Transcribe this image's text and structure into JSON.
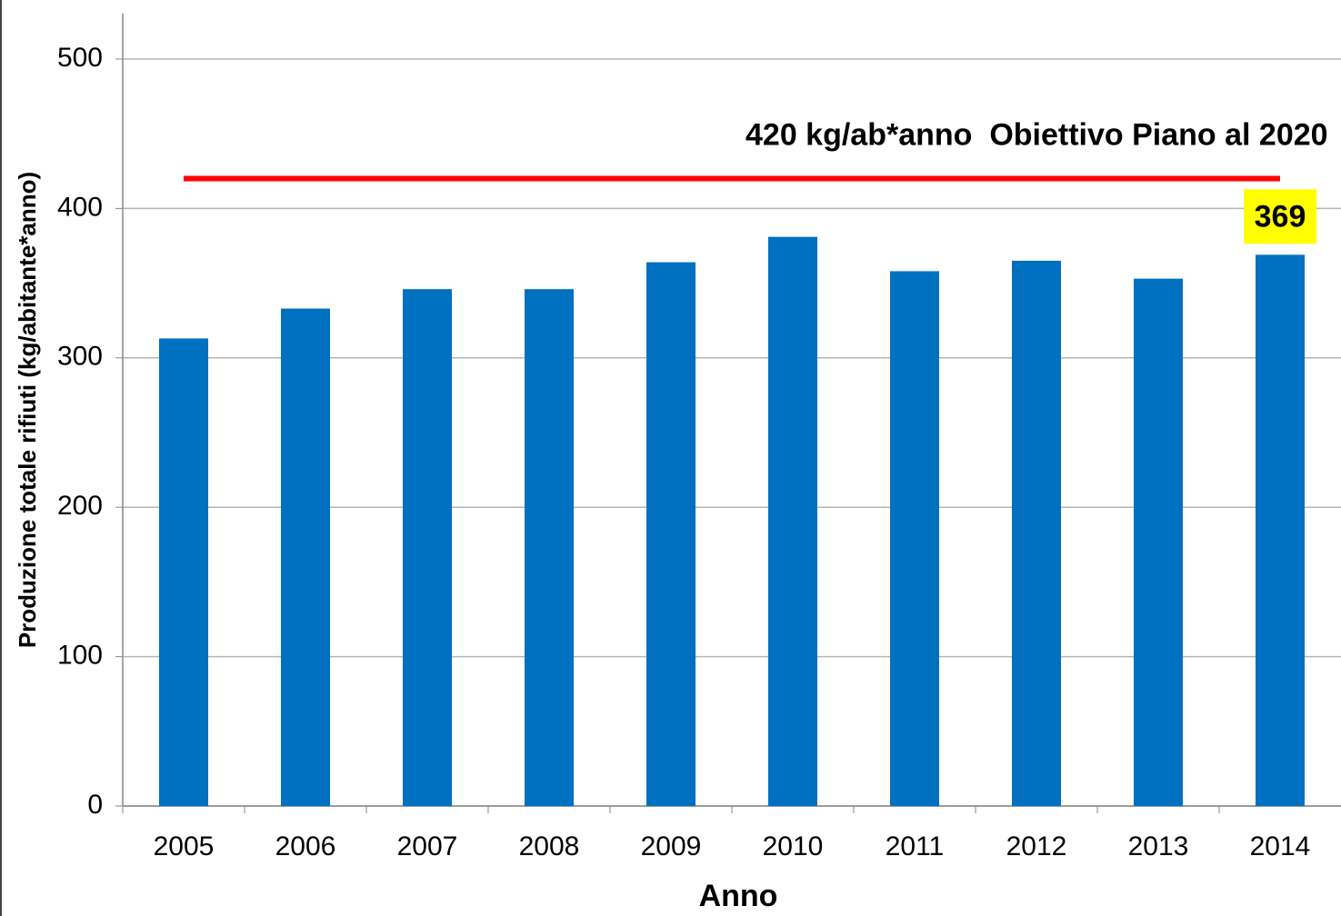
{
  "chart_data": {
    "type": "bar",
    "x_label": "Anno",
    "y_label": "Produzione totale rifiuti (kg/abitante*anno)",
    "categories": [
      "2005",
      "2006",
      "2007",
      "2008",
      "2009",
      "2010",
      "2011",
      "2012",
      "2013",
      "2014"
    ],
    "values": [
      313,
      333,
      346,
      346,
      364,
      381,
      358,
      365,
      353,
      369
    ],
    "value_labels": [
      null,
      null,
      null,
      null,
      null,
      null,
      null,
      null,
      null,
      "369"
    ],
    "color": "#0070c0",
    "ylim": [
      0,
      500
    ],
    "yticks": [
      0,
      100,
      200,
      300,
      400,
      500
    ],
    "grid": true,
    "target": {
      "value": 420,
      "label": "420 kg/ab*anno  Obiettivo Piano al 2020",
      "color": "#ff0000"
    }
  }
}
